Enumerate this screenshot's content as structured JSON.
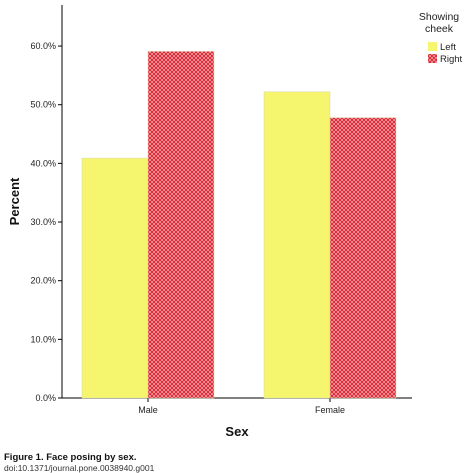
{
  "chart_data": {
    "type": "bar",
    "categories": [
      "Male",
      "Female"
    ],
    "series": [
      {
        "name": "Left",
        "values": [
          40.9,
          52.2
        ],
        "color": "#f5f56e",
        "pattern": "solid"
      },
      {
        "name": "Right",
        "values": [
          59.1,
          47.8
        ],
        "color": "#e8303a",
        "pattern": "crosshatch"
      }
    ],
    "xlabel": "Sex",
    "ylabel": "Percent",
    "ylim": [
      0,
      67
    ],
    "yticks": [
      "0.0%",
      "10.0%",
      "20.0%",
      "30.0%",
      "40.0%",
      "50.0%",
      "60.0%"
    ],
    "grid": false,
    "legend": {
      "title": "Showing cheek",
      "title_lines": [
        "Showing",
        "cheek"
      ],
      "placement": "top-right"
    }
  },
  "caption": {
    "title": "Figure 1. Face posing by sex.",
    "doi": "doi:10.1371/journal.pone.0038940.g001"
  }
}
